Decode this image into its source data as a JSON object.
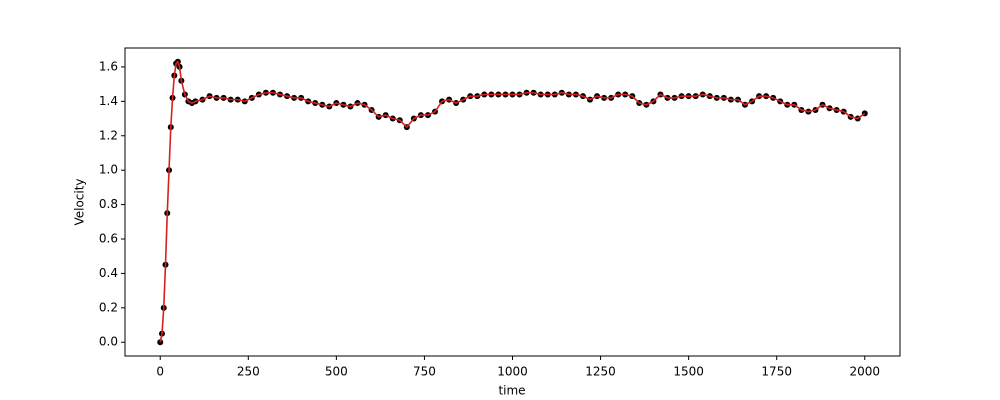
{
  "chart_data": {
    "type": "line_dots",
    "xlabel": "time",
    "ylabel": "Velocity",
    "x": [
      0,
      5,
      10,
      15,
      20,
      25,
      30,
      35,
      40,
      45,
      50,
      55,
      60,
      70,
      80,
      90,
      100,
      120,
      140,
      160,
      180,
      200,
      220,
      240,
      260,
      280,
      300,
      320,
      340,
      360,
      380,
      400,
      420,
      440,
      460,
      480,
      500,
      520,
      540,
      560,
      580,
      600,
      620,
      640,
      660,
      680,
      700,
      720,
      740,
      760,
      780,
      800,
      820,
      840,
      860,
      880,
      900,
      920,
      940,
      960,
      980,
      1000,
      1020,
      1040,
      1060,
      1080,
      1100,
      1120,
      1140,
      1160,
      1180,
      1200,
      1220,
      1240,
      1260,
      1280,
      1300,
      1320,
      1340,
      1360,
      1380,
      1400,
      1420,
      1440,
      1460,
      1480,
      1500,
      1520,
      1540,
      1560,
      1580,
      1600,
      1620,
      1640,
      1660,
      1680,
      1700,
      1720,
      1740,
      1760,
      1780,
      1800,
      1820,
      1840,
      1860,
      1880,
      1900,
      1920,
      1940,
      1960,
      1980,
      2000
    ],
    "values": [
      0,
      0.05,
      0.2,
      0.45,
      0.75,
      1.0,
      1.25,
      1.42,
      1.55,
      1.62,
      1.63,
      1.6,
      1.52,
      1.44,
      1.4,
      1.39,
      1.4,
      1.41,
      1.43,
      1.42,
      1.42,
      1.41,
      1.41,
      1.4,
      1.42,
      1.44,
      1.45,
      1.45,
      1.44,
      1.43,
      1.42,
      1.42,
      1.4,
      1.39,
      1.38,
      1.37,
      1.39,
      1.38,
      1.37,
      1.39,
      1.38,
      1.35,
      1.31,
      1.32,
      1.3,
      1.29,
      1.25,
      1.3,
      1.32,
      1.32,
      1.34,
      1.4,
      1.41,
      1.39,
      1.41,
      1.43,
      1.43,
      1.44,
      1.44,
      1.44,
      1.44,
      1.44,
      1.44,
      1.45,
      1.45,
      1.44,
      1.44,
      1.44,
      1.45,
      1.44,
      1.44,
      1.43,
      1.41,
      1.43,
      1.42,
      1.42,
      1.44,
      1.44,
      1.43,
      1.39,
      1.38,
      1.4,
      1.44,
      1.42,
      1.42,
      1.43,
      1.43,
      1.43,
      1.44,
      1.43,
      1.42,
      1.42,
      1.41,
      1.41,
      1.38,
      1.4,
      1.43,
      1.43,
      1.42,
      1.4,
      1.38,
      1.38,
      1.35,
      1.34,
      1.35,
      1.38,
      1.36,
      1.35,
      1.34,
      1.31,
      1.3,
      1.33
    ],
    "marker_color": "#000000",
    "line_color": "#d62020",
    "xlim": [
      -100,
      2100
    ],
    "xticks": [
      0,
      250,
      500,
      750,
      1000,
      1250,
      1500,
      1750,
      2000
    ],
    "ylim": [
      -0.08,
      1.71
    ],
    "yticks": [
      {
        "value": 0,
        "label": "0.0"
      },
      0.2,
      0.4,
      0.6,
      0.8,
      {
        "value": 1,
        "label": "1.0"
      },
      1.2,
      1.4,
      1.6
    ]
  }
}
